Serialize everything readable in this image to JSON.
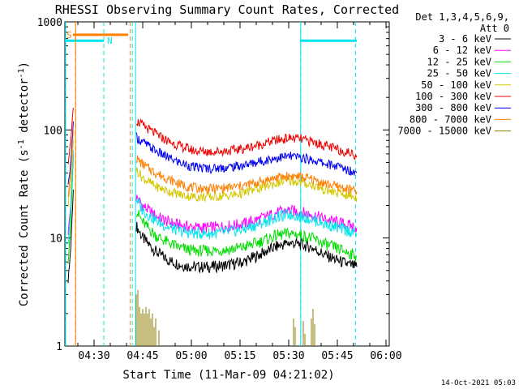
{
  "chart_data": {
    "type": "line",
    "title": "RHESSI Observing Summary Count Rates, Corrected",
    "xlabel": "Start Time (11-Mar-09 04:21:02)",
    "ylabel": "Corrected Count Rate (s",
    "ylabel_sup": "-1",
    "ylabel_tail": " detector",
    "ylabel_tail_sup": "-1",
    "ylabel_close": ")",
    "yscale": "log",
    "ylim": [
      1,
      1000
    ],
    "xlim_minutes": [
      0,
      100
    ],
    "x_ticks": [
      {
        "min": 9,
        "label": "04:30"
      },
      {
        "min": 24,
        "label": "04:45"
      },
      {
        "min": 39,
        "label": "05:00"
      },
      {
        "min": 54,
        "label": "05:15"
      },
      {
        "min": 69,
        "label": "05:30"
      },
      {
        "min": 84,
        "label": "05:45"
      },
      {
        "min": 99,
        "label": "06:00"
      }
    ],
    "y_ticks": [
      {
        "value": 1,
        "label": "1"
      },
      {
        "value": 10,
        "label": "10"
      },
      {
        "value": 100,
        "label": "100"
      },
      {
        "value": 1000,
        "label": "1000"
      }
    ],
    "legend": {
      "header1": "Det 1,3,4,5,6,9,",
      "header2": "Att 0",
      "placement": "right"
    },
    "annotations": [
      {
        "label": "S",
        "color": "#ff7f00"
      },
      {
        "label": "N",
        "color": "#00e5ee"
      }
    ],
    "footer": "14-Oct-2021 05:03",
    "colors": {
      "saa": "#ff7f00",
      "night": "#00e5ee"
    },
    "saa_bar": {
      "start": 2.5,
      "end": 19.5,
      "y": 760
    },
    "night_bars": [
      {
        "start": 0,
        "end": 12.0,
        "y": 670
      },
      {
        "start": 72.5,
        "end": 90,
        "y": 670
      }
    ],
    "saa_vlines": [
      3.3,
      20.1
    ],
    "night_vlines": [
      0.2,
      12.0,
      20.8,
      72.7,
      89.6
    ],
    "gap": [
      20.4,
      21.8
    ],
    "series": [
      {
        "name": "3 - 6 keV",
        "color": "#000000",
        "x": [
          1.0,
          1.8,
          2.6,
          22.0,
          24,
          28,
          32,
          36,
          40,
          45,
          50,
          55,
          60,
          65,
          69,
          72,
          76,
          80,
          84,
          88,
          90
        ],
        "y": [
          4,
          8,
          28,
          13,
          10,
          7.5,
          6.2,
          5.6,
          5.4,
          5.4,
          5.6,
          6.0,
          7.0,
          8.3,
          9.0,
          8.8,
          8.2,
          7.0,
          6.2,
          5.6,
          5.4
        ]
      },
      {
        "name": "6 - 12 keV",
        "color": "#ff00ff",
        "x": [
          1.0,
          1.8,
          2.6,
          22.0,
          24,
          28,
          32,
          36,
          40,
          45,
          50,
          55,
          60,
          65,
          69,
          72,
          76,
          80,
          84,
          88,
          90
        ],
        "y": [
          11,
          20,
          60,
          24,
          20,
          16,
          14,
          13,
          12.5,
          12.5,
          12.8,
          13.5,
          15,
          17,
          18,
          17.5,
          16.5,
          15,
          14,
          13,
          12.5
        ]
      },
      {
        "name": "12 - 25 keV",
        "color": "#00dd00",
        "x": [
          1.0,
          1.8,
          2.6,
          22.0,
          24,
          28,
          32,
          36,
          40,
          45,
          50,
          55,
          60,
          65,
          69,
          72,
          76,
          80,
          84,
          88,
          90
        ],
        "y": [
          6,
          14,
          55,
          18,
          14,
          10.5,
          9,
          8,
          7.6,
          7.6,
          7.8,
          8.2,
          9.2,
          10.5,
          11,
          10.8,
          10,
          8.8,
          8,
          7.2,
          6.8
        ]
      },
      {
        "name": "25 - 50 keV",
        "color": "#00e5ee",
        "x": [
          1.0,
          1.8,
          2.6,
          22.0,
          24,
          28,
          32,
          36,
          40,
          45,
          50,
          55,
          60,
          65,
          69,
          72,
          76,
          80,
          84,
          88,
          90
        ],
        "y": [
          9,
          18,
          65,
          23,
          18,
          14.5,
          12.5,
          11.5,
          11,
          11,
          11.3,
          12,
          13.5,
          15.5,
          16.5,
          16,
          15,
          13.5,
          12.5,
          11.5,
          11
        ]
      },
      {
        "name": "50 - 100 keV",
        "color": "#d4c800",
        "x": [
          1.0,
          1.8,
          2.6,
          22.0,
          24,
          28,
          32,
          36,
          40,
          45,
          50,
          55,
          60,
          65,
          69,
          72,
          76,
          80,
          84,
          88,
          90
        ],
        "y": [
          20,
          35,
          80,
          43,
          36,
          30,
          27,
          25,
          24,
          24,
          24.5,
          26,
          29,
          32,
          34,
          33,
          31,
          28,
          26,
          24.5,
          23.5
        ]
      },
      {
        "name": "100 - 300 keV",
        "color": "#ee0000",
        "x": [
          1.0,
          1.8,
          2.6,
          22.0,
          24,
          28,
          32,
          36,
          40,
          45,
          50,
          55,
          60,
          65,
          69,
          72,
          76,
          80,
          84,
          88,
          90
        ],
        "y": [
          50,
          80,
          160,
          122,
          110,
          92,
          78,
          70,
          64,
          63,
          64,
          67,
          73,
          80,
          84,
          83,
          78,
          72,
          66,
          61,
          58
        ]
      },
      {
        "name": "300 - 800 keV",
        "color": "#0000ee",
        "x": [
          1.0,
          1.8,
          2.6,
          22.0,
          24,
          28,
          32,
          36,
          40,
          45,
          50,
          55,
          60,
          65,
          69,
          72,
          76,
          80,
          84,
          88,
          90
        ],
        "y": [
          30,
          50,
          120,
          86,
          77,
          64,
          55,
          49,
          45,
          44,
          45,
          47,
          51,
          55,
          57,
          56,
          53,
          49,
          46,
          42,
          40
        ]
      },
      {
        "name": "800 - 7000 keV",
        "color": "#ff7f00",
        "x": [
          1.0,
          1.8,
          2.6,
          22.0,
          24,
          28,
          32,
          36,
          40,
          45,
          50,
          55,
          60,
          65,
          69,
          72,
          76,
          80,
          84,
          88,
          90
        ],
        "y": [
          25,
          40,
          100,
          55,
          48,
          40,
          35,
          31,
          29,
          28.5,
          29,
          30.5,
          33,
          36,
          37.5,
          37,
          35,
          32,
          30,
          28,
          27
        ]
      },
      {
        "name": "7000 - 15000 keV",
        "color": "#8b7d00",
        "x": [
          22.0,
          22.5,
          23.0,
          23.5,
          24.0,
          24.5,
          25.0,
          25.5,
          26.0,
          26.5,
          27.0,
          27.5,
          28.0,
          29.0,
          50,
          70.5,
          71.0,
          73.5,
          74.0,
          76.0,
          76.5,
          77.0
        ],
        "y": [
          3.0,
          3.3,
          2.3,
          2.0,
          2.2,
          2.0,
          2.3,
          2.0,
          2.2,
          1.8,
          2.0,
          1.5,
          1.8,
          1.4,
          1.0,
          1.8,
          1.5,
          1.7,
          1.3,
          1.8,
          2.2,
          1.6
        ]
      }
    ]
  }
}
